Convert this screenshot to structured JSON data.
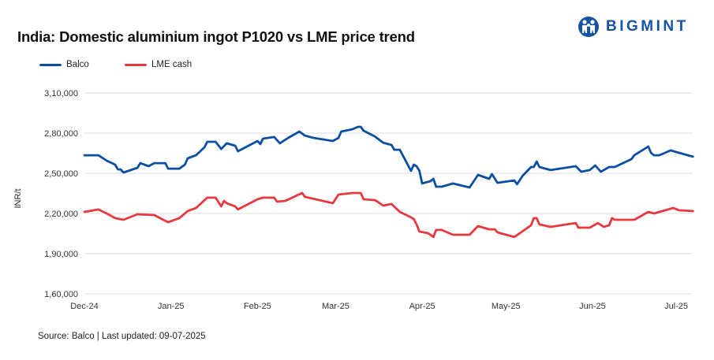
{
  "title": "India: Domestic aluminium ingot P1020 vs LME price trend",
  "logo": {
    "text": "BIGMINT",
    "color": "#1552a8"
  },
  "source": "Source: Balco | Last updated: 09-07-2025",
  "chart_data": {
    "type": "line",
    "title": "India: Domestic aluminium ingot P1020 vs LME price trend",
    "xlabel": "",
    "ylabel": "INR/t",
    "ylim": [
      160000,
      310000
    ],
    "yticks": [
      160000,
      190000,
      220000,
      250000,
      280000,
      310000
    ],
    "ytick_labels": [
      "1,60,000",
      "1,90,000",
      "2,20,000",
      "2,50,000",
      "2,80,000",
      "3,10,000"
    ],
    "xticks": [
      "2024-12-01",
      "2025-01-01",
      "2025-02-01",
      "2025-03-01",
      "2025-04-01",
      "2025-05-01",
      "2025-06-01",
      "2025-07-01"
    ],
    "xtick_labels": [
      "Dec-24",
      "Jan-25",
      "Feb-25",
      "Mar-25",
      "Apr-25",
      "May-25",
      "Jun-25",
      "Jul-25"
    ],
    "grid": "horizontal",
    "legend": "top-left",
    "series": [
      {
        "name": "Balco",
        "color": "#0b4ea2",
        "points": [
          [
            "2024-12-01",
            263500
          ],
          [
            "2024-12-06",
            263500
          ],
          [
            "2024-12-09",
            259400
          ],
          [
            "2024-12-12",
            256500
          ],
          [
            "2024-12-13",
            252900
          ],
          [
            "2024-12-14",
            252900
          ],
          [
            "2024-12-15",
            250600
          ],
          [
            "2024-12-20",
            254100
          ],
          [
            "2024-12-21",
            257600
          ],
          [
            "2024-12-24",
            255300
          ],
          [
            "2024-12-26",
            257600
          ],
          [
            "2024-12-30",
            257600
          ],
          [
            "2024-12-31",
            253500
          ],
          [
            "2025-01-04",
            253500
          ],
          [
            "2025-01-06",
            256500
          ],
          [
            "2025-01-07",
            261200
          ],
          [
            "2025-01-10",
            263500
          ],
          [
            "2025-01-13",
            269400
          ],
          [
            "2025-01-14",
            273500
          ],
          [
            "2025-01-17",
            273500
          ],
          [
            "2025-01-19",
            268200
          ],
          [
            "2025-01-21",
            272400
          ],
          [
            "2025-01-24",
            270600
          ],
          [
            "2025-01-25",
            266500
          ],
          [
            "2025-02-01",
            274100
          ],
          [
            "2025-02-02",
            271800
          ],
          [
            "2025-02-03",
            275900
          ],
          [
            "2025-02-07",
            277100
          ],
          [
            "2025-02-09",
            272400
          ],
          [
            "2025-02-12",
            276500
          ],
          [
            "2025-02-16",
            281200
          ],
          [
            "2025-02-18",
            278200
          ],
          [
            "2025-02-21",
            276500
          ],
          [
            "2025-02-28",
            274100
          ],
          [
            "2025-03-02",
            276500
          ],
          [
            "2025-03-03",
            281200
          ],
          [
            "2025-03-07",
            282900
          ],
          [
            "2025-03-09",
            284700
          ],
          [
            "2025-03-10",
            284700
          ],
          [
            "2025-03-11",
            281800
          ],
          [
            "2025-03-15",
            277600
          ],
          [
            "2025-03-18",
            272900
          ],
          [
            "2025-03-21",
            271200
          ],
          [
            "2025-03-22",
            267600
          ],
          [
            "2025-03-24",
            267600
          ],
          [
            "2025-03-28",
            251800
          ],
          [
            "2025-03-29",
            256500
          ],
          [
            "2025-03-30",
            255300
          ],
          [
            "2025-03-31",
            251800
          ],
          [
            "2025-04-01",
            242400
          ],
          [
            "2025-04-04",
            244100
          ],
          [
            "2025-04-05",
            245900
          ],
          [
            "2025-04-06",
            240000
          ],
          [
            "2025-04-08",
            240000
          ],
          [
            "2025-04-12",
            242400
          ],
          [
            "2025-04-18",
            239400
          ],
          [
            "2025-04-21",
            248800
          ],
          [
            "2025-04-25",
            245900
          ],
          [
            "2025-04-26",
            249400
          ],
          [
            "2025-04-28",
            242900
          ],
          [
            "2025-05-04",
            244700
          ],
          [
            "2025-05-05",
            241800
          ],
          [
            "2025-05-07",
            248200
          ],
          [
            "2025-05-10",
            254700
          ],
          [
            "2025-05-11",
            254700
          ],
          [
            "2025-05-12",
            258800
          ],
          [
            "2025-05-13",
            254700
          ],
          [
            "2025-05-17",
            252400
          ],
          [
            "2025-05-26",
            255300
          ],
          [
            "2025-05-28",
            251200
          ],
          [
            "2025-05-31",
            252400
          ],
          [
            "2025-06-02",
            255900
          ],
          [
            "2025-06-04",
            251200
          ],
          [
            "2025-06-07",
            254700
          ],
          [
            "2025-06-09",
            254700
          ],
          [
            "2025-06-15",
            260600
          ],
          [
            "2025-06-16",
            263500
          ],
          [
            "2025-06-21",
            270000
          ],
          [
            "2025-06-22",
            265300
          ],
          [
            "2025-06-23",
            263500
          ],
          [
            "2025-06-25",
            263500
          ],
          [
            "2025-06-29",
            267100
          ],
          [
            "2025-07-01",
            265900
          ],
          [
            "2025-07-07",
            262400
          ]
        ]
      },
      {
        "name": "LME cash",
        "color": "#e8383d",
        "points": [
          [
            "2024-12-01",
            221200
          ],
          [
            "2024-12-06",
            223000
          ],
          [
            "2024-12-09",
            220000
          ],
          [
            "2024-12-12",
            216500
          ],
          [
            "2024-12-15",
            215300
          ],
          [
            "2024-12-20",
            219400
          ],
          [
            "2024-12-26",
            218800
          ],
          [
            "2024-12-31",
            213500
          ],
          [
            "2025-01-04",
            216500
          ],
          [
            "2025-01-07",
            221800
          ],
          [
            "2025-01-10",
            224100
          ],
          [
            "2025-01-14",
            231800
          ],
          [
            "2025-01-17",
            231800
          ],
          [
            "2025-01-19",
            225300
          ],
          [
            "2025-01-20",
            229400
          ],
          [
            "2025-01-21",
            227700
          ],
          [
            "2025-01-24",
            225300
          ],
          [
            "2025-01-25",
            223000
          ],
          [
            "2025-02-01",
            230600
          ],
          [
            "2025-02-03",
            231800
          ],
          [
            "2025-02-07",
            231800
          ],
          [
            "2025-02-08",
            228800
          ],
          [
            "2025-02-11",
            229400
          ],
          [
            "2025-02-17",
            235300
          ],
          [
            "2025-02-18",
            232400
          ],
          [
            "2025-02-28",
            227700
          ],
          [
            "2025-03-02",
            234100
          ],
          [
            "2025-03-07",
            235300
          ],
          [
            "2025-03-10",
            235300
          ],
          [
            "2025-03-11",
            230600
          ],
          [
            "2025-03-15",
            230000
          ],
          [
            "2025-03-16",
            228800
          ],
          [
            "2025-03-18",
            225900
          ],
          [
            "2025-03-21",
            227100
          ],
          [
            "2025-03-24",
            221200
          ],
          [
            "2025-03-28",
            217100
          ],
          [
            "2025-03-29",
            215900
          ],
          [
            "2025-03-30",
            211800
          ],
          [
            "2025-03-31",
            206500
          ],
          [
            "2025-04-03",
            205300
          ],
          [
            "2025-04-04",
            204100
          ],
          [
            "2025-04-05",
            202400
          ],
          [
            "2025-04-06",
            207700
          ],
          [
            "2025-04-08",
            207700
          ],
          [
            "2025-04-12",
            204100
          ],
          [
            "2025-04-18",
            204100
          ],
          [
            "2025-04-21",
            210600
          ],
          [
            "2025-04-25",
            208200
          ],
          [
            "2025-04-27",
            208200
          ],
          [
            "2025-04-28",
            205900
          ],
          [
            "2025-05-04",
            202400
          ],
          [
            "2025-05-06",
            205300
          ],
          [
            "2025-05-10",
            211200
          ],
          [
            "2025-05-11",
            216500
          ],
          [
            "2025-05-12",
            216500
          ],
          [
            "2025-05-13",
            211800
          ],
          [
            "2025-05-17",
            210000
          ],
          [
            "2025-05-26",
            212900
          ],
          [
            "2025-05-27",
            209400
          ],
          [
            "2025-05-31",
            209400
          ],
          [
            "2025-06-03",
            212900
          ],
          [
            "2025-06-05",
            210000
          ],
          [
            "2025-06-07",
            211200
          ],
          [
            "2025-06-08",
            216500
          ],
          [
            "2025-06-09",
            215300
          ],
          [
            "2025-06-16",
            215300
          ],
          [
            "2025-06-21",
            221200
          ],
          [
            "2025-06-23",
            220000
          ],
          [
            "2025-06-30",
            224100
          ],
          [
            "2025-07-02",
            222400
          ],
          [
            "2025-07-07",
            221800
          ]
        ]
      }
    ]
  }
}
